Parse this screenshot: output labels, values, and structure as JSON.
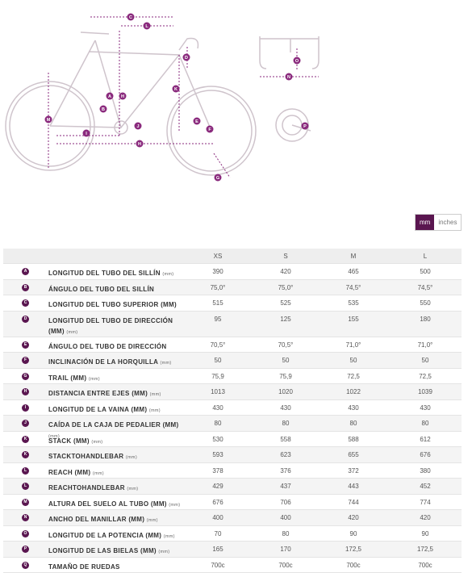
{
  "diagram": {
    "labels": [
      "C",
      "L",
      "D",
      "O",
      "A",
      "H",
      "B",
      "K",
      "E",
      "J",
      "F",
      "M",
      "I",
      "H",
      "G",
      "O",
      "N",
      "P"
    ]
  },
  "units_toggle": [
    "mm",
    "inches"
  ],
  "table": {
    "columns": [
      "XS",
      "S",
      "M",
      "L"
    ],
    "rows": [
      {
        "key": "A",
        "label": "LONGITUD DEL TUBO DEL SILLÍN",
        "unit": "(mm)",
        "values": [
          "390",
          "420",
          "465",
          "500"
        ]
      },
      {
        "key": "B",
        "label": "ÁNGULO DEL TUBO DEL SILLÍN",
        "values": [
          "75,0°",
          "75,0°",
          "74,5°",
          "74,5°"
        ]
      },
      {
        "key": "C",
        "label": "LONGITUD DEL TUBO SUPERIOR (MM)",
        "unit": "(mm)",
        "values": [
          "515",
          "525",
          "535",
          "550"
        ]
      },
      {
        "key": "D",
        "label": "LONGITUD DEL TUBO DE DIRECCIÓN (MM)",
        "unit": "(mm)",
        "values": [
          "95",
          "125",
          "155",
          "180"
        ]
      },
      {
        "key": "E",
        "label": "ÁNGULO DEL TUBO DE DIRECCIÓN",
        "values": [
          "70,5°",
          "70,5°",
          "71,0°",
          "71,0°"
        ]
      },
      {
        "key": "F",
        "label": "INCLINACIÓN DE LA HORQUILLA",
        "unit": "(mm)",
        "values": [
          "50",
          "50",
          "50",
          "50"
        ]
      },
      {
        "key": "G",
        "label": "TRAIL (MM)",
        "unit": "(mm)",
        "values": [
          "75,9",
          "75,9",
          "72,5",
          "72,5"
        ]
      },
      {
        "key": "H",
        "label": "DISTANCIA ENTRE EJES (MM)",
        "unit": "(mm)",
        "values": [
          "1013",
          "1020",
          "1022",
          "1039"
        ]
      },
      {
        "key": "I",
        "label": "LONGITUD DE LA VAINA (MM)",
        "unit": "(mm)",
        "values": [
          "430",
          "430",
          "430",
          "430"
        ]
      },
      {
        "key": "J",
        "label": "CAÍDA DE LA CAJA DE PEDALIER (MM)",
        "unit": "(mm)",
        "values": [
          "80",
          "80",
          "80",
          "80"
        ]
      },
      {
        "key": "K",
        "label": "STACK (MM)",
        "unit": "(mm)",
        "values": [
          "530",
          "558",
          "588",
          "612"
        ]
      },
      {
        "key": "K",
        "label": "STACKTOHANDLEBAR",
        "unit": "(mm)",
        "values": [
          "593",
          "623",
          "655",
          "676"
        ]
      },
      {
        "key": "L",
        "label": "REACH (MM)",
        "unit": "(mm)",
        "values": [
          "378",
          "376",
          "372",
          "380"
        ]
      },
      {
        "key": "L",
        "label": "REACHTOHANDLEBAR",
        "unit": "(mm)",
        "values": [
          "429",
          "437",
          "443",
          "452"
        ]
      },
      {
        "key": "M",
        "label": "ALTURA DEL SUELO AL TUBO (MM)",
        "unit": "(mm)",
        "values": [
          "676",
          "706",
          "744",
          "774"
        ]
      },
      {
        "key": "N",
        "label": "ANCHO DEL MANILLAR (MM)",
        "unit": "(mm)",
        "values": [
          "400",
          "400",
          "420",
          "420"
        ]
      },
      {
        "key": "O",
        "label": "LONGITUD DE LA POTENCIA (MM)",
        "unit": "(mm)",
        "values": [
          "70",
          "80",
          "90",
          "90"
        ]
      },
      {
        "key": "P",
        "label": "LONGITUD DE LAS BIELAS (MM)",
        "unit": "(mm)",
        "values": [
          "165",
          "170",
          "172,5",
          "172,5"
        ]
      },
      {
        "key": "Q",
        "label": "TAMAÑO DE RUEDAS",
        "values": [
          "700c",
          "700c",
          "700c",
          "700c"
        ]
      }
    ]
  }
}
